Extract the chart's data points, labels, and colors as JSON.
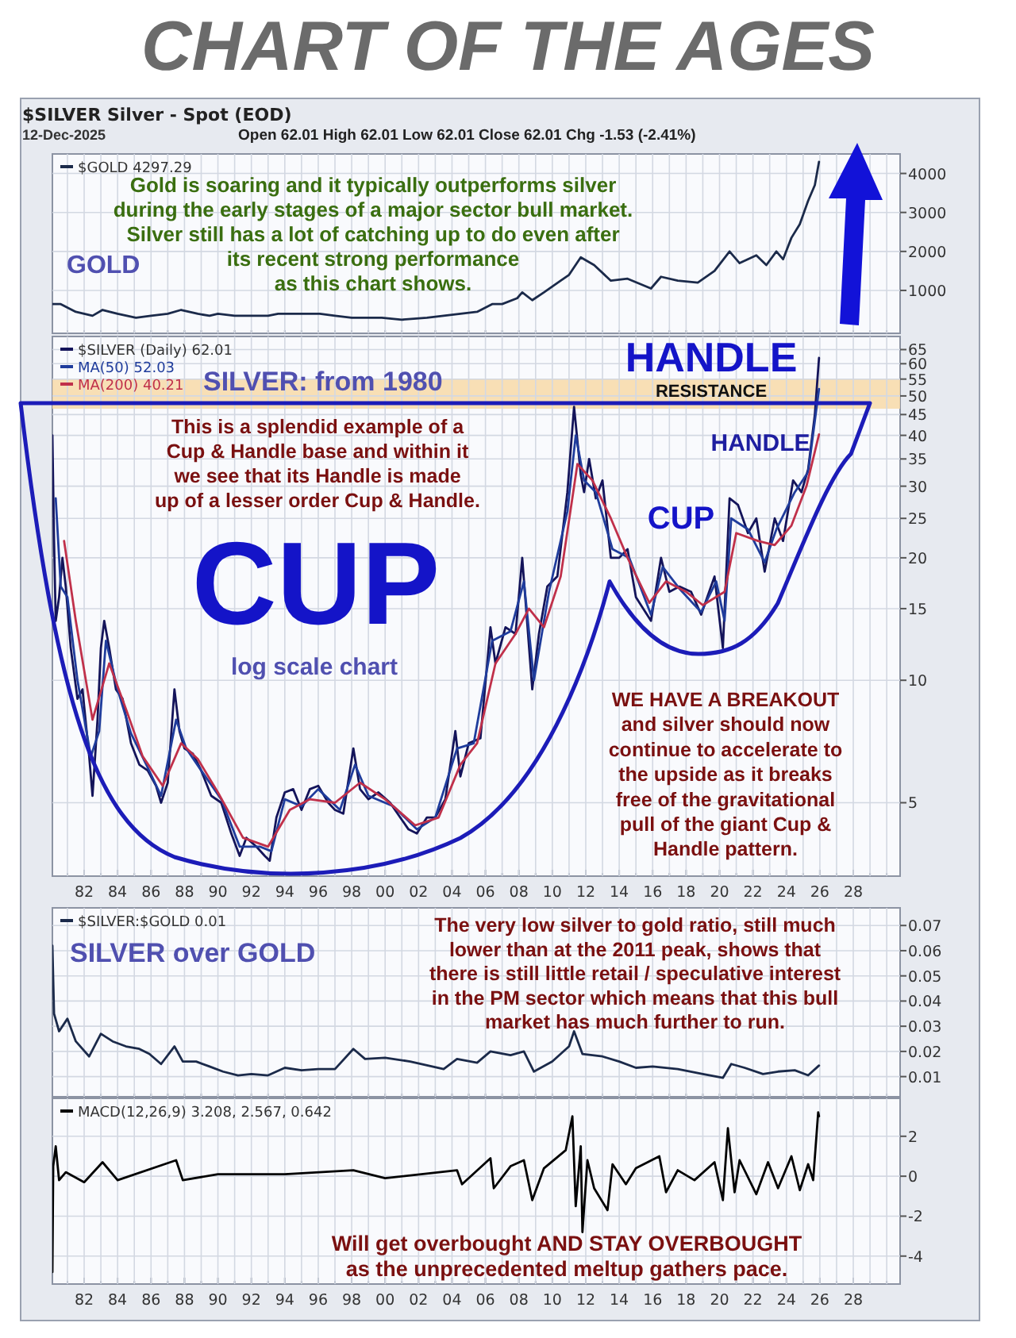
{
  "chart_data": [
    {
      "type": "line",
      "title": "CHART OF THE AGES",
      "subtitle": "$SILVER Silver - Spot (EOD)",
      "annotations": [
        "12-Dec-2025",
        "Open 62.01  High 62.01  Low 62.01  Close 62.01  Chg -1.53 (-2.41%)",
        "GOLD",
        "Gold is soaring and it typically outperforms silver\nduring the early stages of a major sector bull market.\nSilver still has a lot of catching up to do even after\nits recent strong performance\nas this chart shows."
      ],
      "series": [
        {
          "name": "$GOLD 4297.29",
          "color": "#1b2a4a",
          "x": [
            1980.1,
            1980.6,
            1981.5,
            1982.5,
            1983.1,
            1984.0,
            1985.1,
            1986.0,
            1987.0,
            1987.8,
            1988.8,
            1989.5,
            1990.0,
            1991.0,
            1992.0,
            1993.0,
            1993.6,
            1994.5,
            1995.5,
            1996.1,
            1997.0,
            1998.0,
            1999.0,
            1999.8,
            2001.0,
            2002.5,
            2003.5,
            2004.5,
            2005.5,
            2006.4,
            2007.0,
            2007.9,
            2008.2,
            2008.8,
            2009.5,
            2010.5,
            2011.0,
            2011.7,
            2012.5,
            2013.5,
            2014.5,
            2015.9,
            2016.5,
            2017.5,
            2018.7,
            2019.7,
            2020.6,
            2021.2,
            2022.2,
            2022.8,
            2023.4,
            2023.8,
            2024.3,
            2024.8,
            2025.3,
            2025.7,
            2025.95
          ],
          "values": [
            650,
            650,
            450,
            350,
            500,
            400,
            300,
            350,
            400,
            500,
            400,
            350,
            400,
            350,
            350,
            350,
            400,
            400,
            400,
            400,
            350,
            300,
            300,
            300,
            250,
            300,
            350,
            400,
            450,
            650,
            650,
            800,
            950,
            750,
            950,
            1250,
            1400,
            1850,
            1650,
            1250,
            1300,
            1050,
            1350,
            1250,
            1200,
            1500,
            2000,
            1700,
            1900,
            1650,
            2000,
            1800,
            2350,
            2700,
            3300,
            3700,
            4300
          ]
        }
      ],
      "xlim": [
        1980.1,
        2030.8
      ],
      "xticks": [
        {
          "value": 1981,
          "label": null
        },
        {
          "value": 1982,
          "label": null
        },
        {
          "value": 1983,
          "label": null
        },
        {
          "value": 1984,
          "label": null
        },
        {
          "value": 1985,
          "label": null
        },
        {
          "value": 1986,
          "label": null
        },
        {
          "value": 1987,
          "label": null
        },
        {
          "value": 1988,
          "label": null
        },
        {
          "value": 1989,
          "label": null
        },
        {
          "value": 1990,
          "label": null
        },
        {
          "value": 1991,
          "label": null
        },
        {
          "value": 1992,
          "label": null
        },
        {
          "value": 1993,
          "label": null
        },
        {
          "value": 1994,
          "label": null
        },
        {
          "value": 1995,
          "label": null
        },
        {
          "value": 1996,
          "label": null
        },
        {
          "value": 1997,
          "label": null
        },
        {
          "value": 1998,
          "label": null
        },
        {
          "value": 1999,
          "label": null
        },
        {
          "value": 2000,
          "label": null
        },
        {
          "value": 2001,
          "label": null
        },
        {
          "value": 2002,
          "label": null
        },
        {
          "value": 2003,
          "label": null
        },
        {
          "value": 2004,
          "label": null
        },
        {
          "value": 2005,
          "label": null
        },
        {
          "value": 2006,
          "label": null
        },
        {
          "value": 2007,
          "label": null
        },
        {
          "value": 2008,
          "label": null
        },
        {
          "value": 2009,
          "label": null
        },
        {
          "value": 2010,
          "label": null
        },
        {
          "value": 2011,
          "label": null
        },
        {
          "value": 2012,
          "label": null
        },
        {
          "value": 2013,
          "label": null
        },
        {
          "value": 2014,
          "label": null
        },
        {
          "value": 2015,
          "label": null
        },
        {
          "value": 2016,
          "label": null
        },
        {
          "value": 2017,
          "label": null
        },
        {
          "value": 2018,
          "label": null
        },
        {
          "value": 2019,
          "label": null
        },
        {
          "value": 2020,
          "label": null
        },
        {
          "value": 2021,
          "label": null
        },
        {
          "value": 2022,
          "label": null
        },
        {
          "value": 2023,
          "label": null
        },
        {
          "value": 2024,
          "label": null
        },
        {
          "value": 2025,
          "label": null
        },
        {
          "value": 2026,
          "label": null
        },
        {
          "value": 2027,
          "label": null
        },
        {
          "value": 2028,
          "label": null
        },
        {
          "value": 2029,
          "label": null
        },
        {
          "value": 2030,
          "label": null
        }
      ],
      "ylim": [
        -100,
        4500
      ],
      "yticks": [
        1000,
        2000,
        3000,
        4000
      ],
      "grid": true,
      "legend": "top left",
      "tick_labels": "y"
    },
    {
      "type": "line",
      "log": "y",
      "annotations": [
        "SILVER: from 1980",
        "HANDLE",
        "This is a splendid example of a\nCup & Handle base and within it\nwe see that its Handle is made\nup of a lesser order Cup & Handle.",
        "CUP",
        "log scale chart",
        "CUP",
        "HANDLE",
        "WE HAVE A BREAKOUT\nand silver should now\ncontinue to accelerate to\nthe upside as it breaks\nfree of the gravitational\npull of the giant Cup &\nHandle pattern."
      ],
      "bands": [
        {
          "axis": "y",
          "from": 46.5,
          "to": 55,
          "label": "RESISTANCE",
          "color": "#f8d9a8"
        }
      ],
      "series": [
        {
          "name": "$SILVER (Daily) 62.01",
          "color": "#14145a",
          "x": [
            1980.1,
            1980.2,
            1980.3,
            1980.5,
            1980.7,
            1980.9,
            1981.2,
            1981.6,
            1981.9,
            1982.3,
            1982.5,
            1982.8,
            1983.0,
            1983.2,
            1983.5,
            1983.9,
            1984.3,
            1984.8,
            1985.3,
            1985.8,
            1986.3,
            1986.6,
            1987.0,
            1987.4,
            1987.7,
            1988.0,
            1988.5,
            1989.0,
            1989.6,
            1990.2,
            1990.8,
            1991.3,
            1991.7,
            1992.3,
            1992.8,
            1993.1,
            1993.5,
            1994.0,
            1994.5,
            1995.0,
            1995.5,
            1996.0,
            1996.6,
            1997.0,
            1997.5,
            1998.1,
            1998.5,
            1999.0,
            1999.6,
            2000.3,
            2000.9,
            2001.4,
            2001.9,
            2002.5,
            2003.0,
            2003.6,
            2004.2,
            2004.5,
            2005.0,
            2005.7,
            2006.3,
            2006.6,
            2007.2,
            2007.8,
            2008.2,
            2008.8,
            2009.2,
            2009.7,
            2010.3,
            2010.9,
            2011.3,
            2011.7,
            2011.9,
            2012.2,
            2012.6,
            2013.0,
            2013.5,
            2014.0,
            2014.5,
            2015.0,
            2015.9,
            2016.5,
            2017.0,
            2017.6,
            2018.3,
            2018.9,
            2019.7,
            2020.2,
            2020.6,
            2021.1,
            2021.7,
            2022.2,
            2022.7,
            2023.3,
            2023.8,
            2024.4,
            2024.9,
            2025.3,
            2025.7,
            2025.95
          ],
          "values": [
            40,
            22,
            14,
            16,
            20,
            17,
            12,
            9,
            9.5,
            6.5,
            5.2,
            8,
            12,
            14,
            12,
            9.5,
            9,
            7,
            6.2,
            6,
            5.5,
            5.0,
            5.6,
            9.5,
            7.5,
            6.8,
            6.6,
            6,
            5.2,
            5.0,
            4.2,
            3.7,
            4.1,
            3.9,
            3.7,
            3.6,
            4.6,
            5.3,
            5.4,
            4.8,
            5.4,
            5.5,
            5.0,
            4.8,
            4.7,
            6.8,
            5.4,
            5.1,
            5.3,
            5.0,
            4.6,
            4.3,
            4.2,
            4.6,
            4.6,
            5.1,
            7.5,
            5.8,
            7.0,
            7.2,
            13.5,
            11,
            13.5,
            13,
            20,
            9.5,
            13,
            17,
            18,
            29,
            47,
            32,
            29,
            35,
            28,
            31,
            20,
            20,
            21,
            16,
            14,
            20,
            16.5,
            17,
            16.5,
            14.5,
            18,
            12,
            28,
            27,
            23,
            25,
            18.5,
            25,
            22,
            31,
            29,
            33,
            45,
            62.01
          ]
        },
        {
          "name": "MA(50) 52.03",
          "color": "#1f3c9c",
          "x": [
            1980.3,
            1980.6,
            1981.0,
            1981.6,
            1982.4,
            1982.9,
            1983.3,
            1984.0,
            1984.8,
            1985.8,
            1986.6,
            1987.5,
            1988.1,
            1989.0,
            1990.2,
            1991.3,
            1992.5,
            1993.2,
            1994.0,
            1995.0,
            1996.0,
            1997.3,
            1998.2,
            1999.0,
            2000.5,
            2001.9,
            2003.0,
            2004.3,
            2005.3,
            2006.4,
            2007.5,
            2008.3,
            2008.9,
            2009.8,
            2010.9,
            2011.4,
            2011.9,
            2012.6,
            2013.6,
            2014.6,
            2015.9,
            2016.6,
            2017.6,
            2018.9,
            2019.8,
            2020.3,
            2020.7,
            2021.7,
            2022.7,
            2023.4,
            2024.5,
            2025.3,
            2025.95
          ],
          "values": [
            28,
            17,
            16,
            10,
            6.5,
            7.5,
            12.5,
            9.5,
            7.4,
            6.1,
            5.2,
            8,
            6.8,
            6.0,
            5.1,
            3.9,
            3.9,
            3.8,
            5.1,
            4.9,
            5.4,
            4.8,
            6.2,
            5.2,
            4.9,
            4.3,
            4.6,
            6.8,
            7.0,
            12.5,
            13.2,
            17.5,
            10,
            16.5,
            26,
            40,
            31,
            29,
            21,
            20,
            14.5,
            19,
            16.8,
            14.7,
            17.5,
            14,
            25,
            23.5,
            19.5,
            23.5,
            29,
            32.5,
            52.03
          ]
        },
        {
          "name": "MA(200) 40.21",
          "color": "#c0304a",
          "x": [
            1980.8,
            1981.5,
            1982.5,
            1983.5,
            1984.5,
            1985.5,
            1986.7,
            1987.8,
            1988.8,
            1990.0,
            1991.5,
            1993.0,
            1994.3,
            1995.5,
            1997.0,
            1998.5,
            2000.0,
            2001.8,
            2003.2,
            2004.5,
            2005.5,
            2006.6,
            2007.8,
            2008.6,
            2009.5,
            2010.5,
            2011.5,
            2012.4,
            2013.5,
            2014.5,
            2015.8,
            2016.8,
            2018.0,
            2019.0,
            2020.3,
            2021.0,
            2022.3,
            2023.3,
            2024.3,
            2025.2,
            2025.95
          ],
          "values": [
            22,
            14,
            8,
            11,
            8.5,
            6.5,
            5.5,
            7,
            6.4,
            5.3,
            4.1,
            3.9,
            4.8,
            5.1,
            5.0,
            5.6,
            5.1,
            4.4,
            4.6,
            6.2,
            7.0,
            11,
            13,
            15,
            13.5,
            18,
            34,
            31,
            25,
            20,
            15.5,
            17.5,
            16.5,
            15.3,
            16.5,
            23,
            22,
            21.5,
            24,
            30,
            40.21
          ]
        }
      ],
      "xlim": [
        1980.1,
        2030.8
      ],
      "xticks": [
        {
          "value": 1981,
          "label": null
        },
        {
          "value": 1982,
          "label": "82"
        },
        {
          "value": 1983,
          "label": null
        },
        {
          "value": 1984,
          "label": "84"
        },
        {
          "value": 1985,
          "label": null
        },
        {
          "value": 1986,
          "label": "86"
        },
        {
          "value": 1987,
          "label": null
        },
        {
          "value": 1988,
          "label": "88"
        },
        {
          "value": 1989,
          "label": null
        },
        {
          "value": 1990,
          "label": "90"
        },
        {
          "value": 1991,
          "label": null
        },
        {
          "value": 1992,
          "label": "92"
        },
        {
          "value": 1993,
          "label": null
        },
        {
          "value": 1994,
          "label": "94"
        },
        {
          "value": 1995,
          "label": null
        },
        {
          "value": 1996,
          "label": "96"
        },
        {
          "value": 1997,
          "label": null
        },
        {
          "value": 1998,
          "label": "98"
        },
        {
          "value": 1999,
          "label": null
        },
        {
          "value": 2000,
          "label": "00"
        },
        {
          "value": 2001,
          "label": null
        },
        {
          "value": 2002,
          "label": "02"
        },
        {
          "value": 2003,
          "label": null
        },
        {
          "value": 2004,
          "label": "04"
        },
        {
          "value": 2005,
          "label": null
        },
        {
          "value": 2006,
          "label": "06"
        },
        {
          "value": 2007,
          "label": null
        },
        {
          "value": 2008,
          "label": "08"
        },
        {
          "value": 2009,
          "label": null
        },
        {
          "value": 2010,
          "label": "10"
        },
        {
          "value": 2011,
          "label": null
        },
        {
          "value": 2012,
          "label": "12"
        },
        {
          "value": 2013,
          "label": null
        },
        {
          "value": 2014,
          "label": "14"
        },
        {
          "value": 2015,
          "label": null
        },
        {
          "value": 2016,
          "label": "16"
        },
        {
          "value": 2017,
          "label": null
        },
        {
          "value": 2018,
          "label": "18"
        },
        {
          "value": 2019,
          "label": null
        },
        {
          "value": 2020,
          "label": "20"
        },
        {
          "value": 2021,
          "label": null
        },
        {
          "value": 2022,
          "label": "22"
        },
        {
          "value": 2023,
          "label": null
        },
        {
          "value": 2024,
          "label": "24"
        },
        {
          "value": 2025,
          "label": null
        },
        {
          "value": 2026,
          "label": "26"
        },
        {
          "value": 2027,
          "label": null
        },
        {
          "value": 2028,
          "label": "28"
        },
        {
          "value": 2029,
          "label": null
        },
        {
          "value": 2030,
          "label": null
        }
      ],
      "ylim": [
        3.3,
        70
      ],
      "yticks": [
        5,
        10,
        15,
        20,
        25,
        30,
        35,
        40,
        45,
        50,
        55,
        60,
        65
      ],
      "grid": true,
      "legend": "top left"
    },
    {
      "type": "line",
      "annotations": [
        "SILVER over GOLD",
        "The very low silver to gold ratio, still much\nlower than at the 2011 peak, shows that\nthere is still little retail / speculative interest\nin the PM sector which means that this bull\nmarket has  much further to run."
      ],
      "series": [
        {
          "name": "$SILVER:$GOLD 0.01",
          "color": "#1b2a4a",
          "x": [
            1980.1,
            1980.2,
            1980.5,
            1981.0,
            1981.5,
            1982.3,
            1983.0,
            1983.7,
            1984.5,
            1985.3,
            1985.9,
            1986.6,
            1987.4,
            1987.9,
            1988.7,
            1989.5,
            1990.3,
            1991.2,
            1992.0,
            1993.0,
            1994.0,
            1995.0,
            1996.0,
            1997.0,
            1998.1,
            1998.8,
            2000.0,
            2001.5,
            2002.5,
            2003.5,
            2004.3,
            2005.5,
            2006.3,
            2007.5,
            2008.3,
            2008.9,
            2010.0,
            2011.0,
            2011.3,
            2011.8,
            2013.0,
            2014.0,
            2015.0,
            2016.0,
            2017.5,
            2019.0,
            2020.2,
            2020.7,
            2021.5,
            2022.6,
            2023.5,
            2024.5,
            2025.3,
            2025.95
          ],
          "values": [
            0.062,
            0.035,
            0.028,
            0.033,
            0.024,
            0.018,
            0.027,
            0.024,
            0.022,
            0.021,
            0.019,
            0.015,
            0.022,
            0.016,
            0.016,
            0.014,
            0.012,
            0.0105,
            0.011,
            0.0105,
            0.0135,
            0.0125,
            0.013,
            0.013,
            0.021,
            0.017,
            0.0175,
            0.016,
            0.0145,
            0.013,
            0.017,
            0.0155,
            0.02,
            0.0185,
            0.02,
            0.012,
            0.016,
            0.022,
            0.028,
            0.019,
            0.018,
            0.016,
            0.0135,
            0.014,
            0.013,
            0.011,
            0.0095,
            0.015,
            0.0135,
            0.011,
            0.012,
            0.0125,
            0.0105,
            0.0144
          ]
        }
      ],
      "xlim": [
        1980.1,
        2030.8
      ],
      "xticks": [
        {
          "value": 1981,
          "label": null
        },
        {
          "value": 1982,
          "label": null
        },
        {
          "value": 1983,
          "label": null
        },
        {
          "value": 1984,
          "label": null
        },
        {
          "value": 1985,
          "label": null
        },
        {
          "value": 1986,
          "label": null
        },
        {
          "value": 1987,
          "label": null
        },
        {
          "value": 1988,
          "label": null
        },
        {
          "value": 1989,
          "label": null
        },
        {
          "value": 1990,
          "label": null
        },
        {
          "value": 1991,
          "label": null
        },
        {
          "value": 1992,
          "label": null
        },
        {
          "value": 1993,
          "label": null
        },
        {
          "value": 1994,
          "label": null
        },
        {
          "value": 1995,
          "label": null
        },
        {
          "value": 1996,
          "label": null
        },
        {
          "value": 1997,
          "label": null
        },
        {
          "value": 1998,
          "label": null
        },
        {
          "value": 1999,
          "label": null
        },
        {
          "value": 2000,
          "label": null
        },
        {
          "value": 2001,
          "label": null
        },
        {
          "value": 2002,
          "label": null
        },
        {
          "value": 2003,
          "label": null
        },
        {
          "value": 2004,
          "label": null
        },
        {
          "value": 2005,
          "label": null
        },
        {
          "value": 2006,
          "label": null
        },
        {
          "value": 2007,
          "label": null
        },
        {
          "value": 2008,
          "label": null
        },
        {
          "value": 2009,
          "label": null
        },
        {
          "value": 2010,
          "label": null
        },
        {
          "value": 2011,
          "label": null
        },
        {
          "value": 2012,
          "label": null
        },
        {
          "value": 2013,
          "label": null
        },
        {
          "value": 2014,
          "label": null
        },
        {
          "value": 2015,
          "label": null
        },
        {
          "value": 2016,
          "label": null
        },
        {
          "value": 2017,
          "label": null
        },
        {
          "value": 2018,
          "label": null
        },
        {
          "value": 2019,
          "label": null
        },
        {
          "value": 2020,
          "label": null
        },
        {
          "value": 2021,
          "label": null
        },
        {
          "value": 2022,
          "label": null
        },
        {
          "value": 2023,
          "label": null
        },
        {
          "value": 2024,
          "label": null
        },
        {
          "value": 2025,
          "label": null
        },
        {
          "value": 2026,
          "label": null
        },
        {
          "value": 2027,
          "label": null
        },
        {
          "value": 2028,
          "label": null
        },
        {
          "value": 2029,
          "label": null
        },
        {
          "value": 2030,
          "label": null
        }
      ],
      "ylim": [
        0.002,
        0.077
      ],
      "yticks": [
        0.01,
        0.02,
        0.03,
        0.04,
        0.05,
        0.06,
        0.07
      ],
      "grid": true,
      "legend": "top left",
      "tick_labels": "y"
    },
    {
      "type": "line",
      "annotations": [
        "Will get overbought AND STAY OVERBOUGHT\nas the unprecedented meltup gathers pace."
      ],
      "series": [
        {
          "name": "MACD(12,26,9) 3.208, 2.567, 0.642",
          "color": "#000000",
          "x": [
            1980.1,
            1980.15,
            1980.3,
            1980.5,
            1980.9,
            1982.0,
            1983.1,
            1984.0,
            1987.5,
            1987.9,
            1990.0,
            1994.0,
            1998.1,
            2000.0,
            2004.3,
            2004.6,
            2006.3,
            2006.5,
            2007.5,
            2008.3,
            2008.8,
            2009.5,
            2010.8,
            2011.2,
            2011.4,
            2011.7,
            2011.8,
            2012.1,
            2012.5,
            2013.3,
            2013.6,
            2014.4,
            2015.0,
            2016.4,
            2016.8,
            2017.5,
            2018.5,
            2019.7,
            2020.2,
            2020.5,
            2020.9,
            2021.2,
            2022.2,
            2022.9,
            2023.5,
            2024.3,
            2024.8,
            2025.3,
            2025.6,
            2025.9,
            2025.95
          ],
          "values": [
            -4.8,
            0.5,
            1.5,
            -0.2,
            0.2,
            -0.3,
            0.7,
            -0.2,
            0.8,
            -0.2,
            0.1,
            0.1,
            0.3,
            -0.1,
            0.3,
            -0.4,
            0.9,
            -0.6,
            0.5,
            0.8,
            -1.2,
            0.4,
            1.3,
            3.0,
            -1.5,
            1.5,
            -2.8,
            0.8,
            -0.6,
            -1.7,
            0.6,
            -0.4,
            0.4,
            1.0,
            -0.8,
            0.3,
            -0.2,
            0.7,
            -1.2,
            2.4,
            -0.8,
            0.8,
            -0.9,
            0.7,
            -0.6,
            1.0,
            -0.7,
            0.6,
            -0.2,
            3.2,
            3.0
          ]
        }
      ],
      "xlim": [
        1980.1,
        2030.8
      ],
      "xticks": [
        {
          "value": 1981,
          "label": null
        },
        {
          "value": 1982,
          "label": "82"
        },
        {
          "value": 1983,
          "label": null
        },
        {
          "value": 1984,
          "label": "84"
        },
        {
          "value": 1985,
          "label": null
        },
        {
          "value": 1986,
          "label": "86"
        },
        {
          "value": 1987,
          "label": null
        },
        {
          "value": 1988,
          "label": "88"
        },
        {
          "value": 1989,
          "label": null
        },
        {
          "value": 1990,
          "label": "90"
        },
        {
          "value": 1991,
          "label": null
        },
        {
          "value": 1992,
          "label": "92"
        },
        {
          "value": 1993,
          "label": null
        },
        {
          "value": 1994,
          "label": "94"
        },
        {
          "value": 1995,
          "label": null
        },
        {
          "value": 1996,
          "label": "96"
        },
        {
          "value": 1997,
          "label": null
        },
        {
          "value": 1998,
          "label": "98"
        },
        {
          "value": 1999,
          "label": null
        },
        {
          "value": 2000,
          "label": "00"
        },
        {
          "value": 2001,
          "label": null
        },
        {
          "value": 2002,
          "label": "02"
        },
        {
          "value": 2003,
          "label": null
        },
        {
          "value": 2004,
          "label": "04"
        },
        {
          "value": 2005,
          "label": null
        },
        {
          "value": 2006,
          "label": "06"
        },
        {
          "value": 2007,
          "label": null
        },
        {
          "value": 2008,
          "label": "08"
        },
        {
          "value": 2009,
          "label": null
        },
        {
          "value": 2010,
          "label": "10"
        },
        {
          "value": 2011,
          "label": null
        },
        {
          "value": 2012,
          "label": "12"
        },
        {
          "value": 2013,
          "label": null
        },
        {
          "value": 2014,
          "label": "14"
        },
        {
          "value": 2015,
          "label": null
        },
        {
          "value": 2016,
          "label": "16"
        },
        {
          "value": 2017,
          "label": null
        },
        {
          "value": 2018,
          "label": "18"
        },
        {
          "value": 2019,
          "label": null
        },
        {
          "value": 2020,
          "label": "20"
        },
        {
          "value": 2021,
          "label": null
        },
        {
          "value": 2022,
          "label": "22"
        },
        {
          "value": 2023,
          "label": null
        },
        {
          "value": 2024,
          "label": "24"
        },
        {
          "value": 2025,
          "label": null
        },
        {
          "value": 2026,
          "label": "26"
        },
        {
          "value": 2027,
          "label": null
        },
        {
          "value": 2028,
          "label": "28"
        },
        {
          "value": 2029,
          "label": null
        },
        {
          "value": 2030,
          "label": null
        }
      ],
      "ylim": [
        -5.4,
        3.9
      ],
      "yticks": [
        -4,
        -2,
        0,
        2
      ],
      "grid": true,
      "legend": "top left"
    }
  ]
}
